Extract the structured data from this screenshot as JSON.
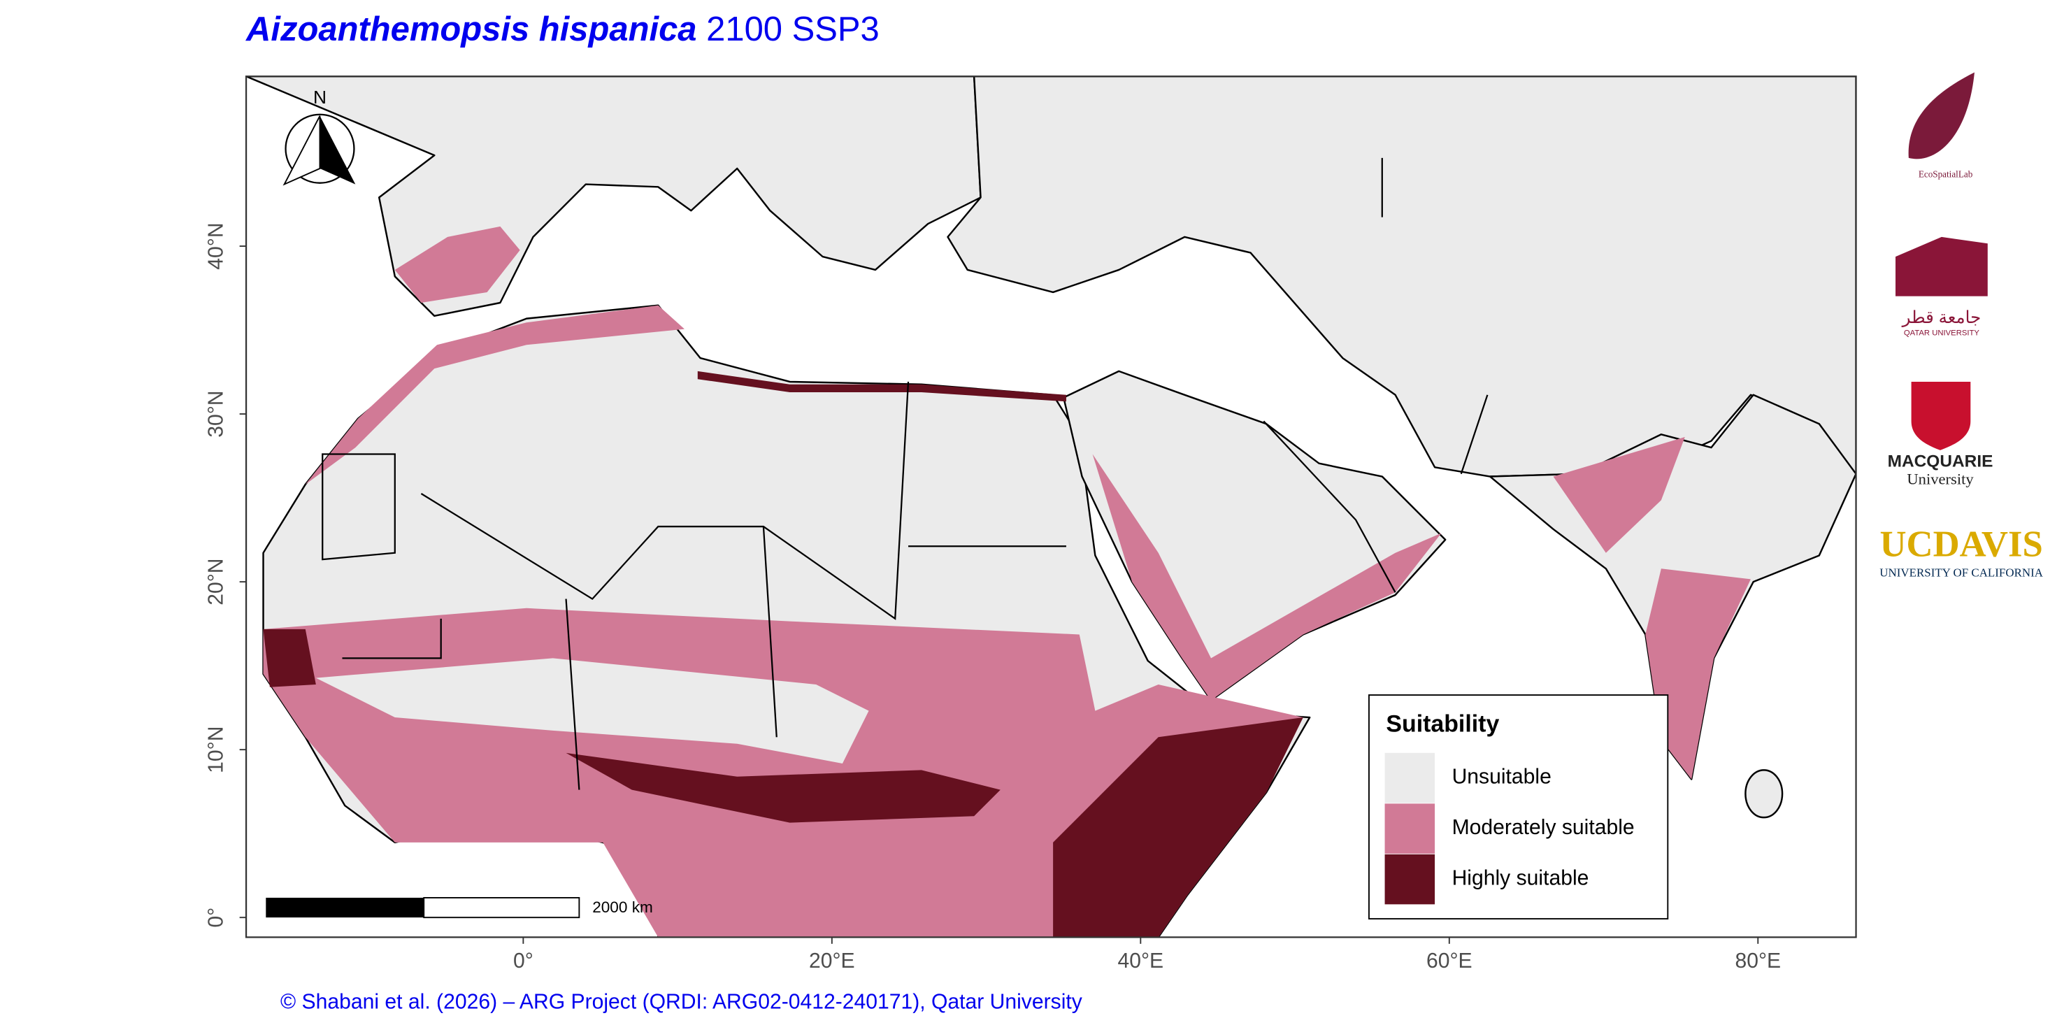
{
  "title": {
    "species": "Aizoanthemopsis hispanica",
    "scenario": "2100 SSP3"
  },
  "axes": {
    "x_ticks": [
      "0°",
      "20°E",
      "40°E",
      "60°E",
      "80°E"
    ],
    "y_ticks": [
      "0°",
      "10°N",
      "20°N",
      "30°N",
      "40°N"
    ]
  },
  "north_arrow": "N",
  "scale_bar": "2000 km",
  "legend": {
    "title": "Suitability",
    "entries": [
      {
        "label": "Unsuitable",
        "color": "#ebebeb"
      },
      {
        "label": "Moderately suitable",
        "color": "#d17a96"
      },
      {
        "label": "Highly suitable",
        "color": "#65101f"
      }
    ]
  },
  "credit": "© Shabani et al. (2026) – ARG Project (QRDI: ARG02-0412-240171), Qatar University",
  "logos": {
    "ecospatiallab": "EcoSpatialLab",
    "qatar_arabic": "جامعة قطر",
    "qatar": "QATAR UNIVERSITY",
    "macquarie": "MACQUARIE",
    "macquarie_sub": "University",
    "ucdavis": "UCDAVIS",
    "ucdavis_sub": "UNIVERSITY OF CALIFORNIA"
  }
}
